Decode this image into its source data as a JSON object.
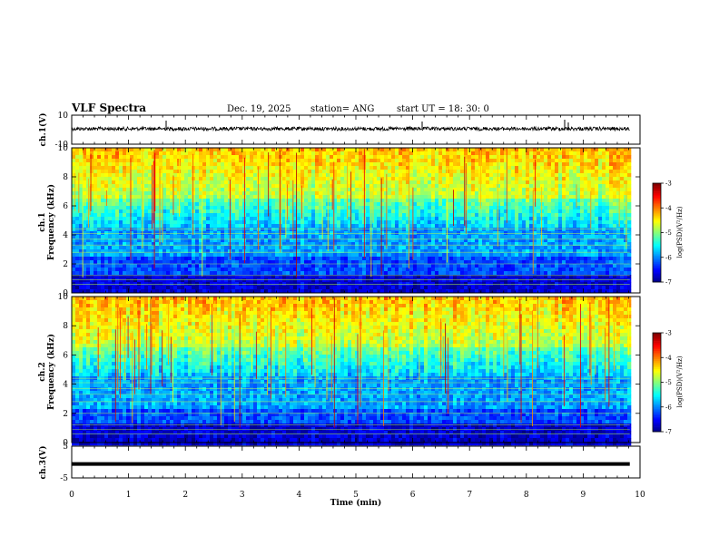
{
  "header": {
    "title": "VLF Spectra",
    "date": "Dec. 19, 2025",
    "station": "station= ANG",
    "start": "start  UT  =   18: 30: 0"
  },
  "chart_data": [
    {
      "id": "ch1_wave",
      "type": "line",
      "ylabel": "ch.1(V)",
      "ylim": [
        -10,
        10
      ],
      "yticks": [
        "10",
        "-10"
      ],
      "description_series": "waveform amplitude"
    },
    {
      "id": "ch1_spec",
      "type": "heatmap",
      "ylabel": [
        "ch.1",
        "Frequency  (kHz)"
      ],
      "ylim": [
        0,
        10
      ],
      "yticks": [
        "0",
        "2",
        "4",
        "6",
        "8",
        "10"
      ],
      "colorbar": {
        "label": "log(PSD)(V²/Hz)",
        "range": [
          -7,
          -3
        ],
        "ticks": [
          "-3",
          "-4",
          "-5",
          "-6",
          "-7"
        ]
      }
    },
    {
      "id": "ch2_spec",
      "type": "heatmap",
      "ylabel": [
        "ch.2",
        "Frequency  (kHz)"
      ],
      "ylim": [
        0,
        10
      ],
      "yticks": [
        "0",
        "2",
        "4",
        "6",
        "8",
        "10"
      ],
      "colorbar": {
        "label": "log(PSD)(V²/Hz)",
        "range": [
          -7,
          -3
        ],
        "ticks": [
          "-3",
          "-4",
          "-5",
          "-6",
          "-7"
        ]
      }
    },
    {
      "id": "ch3_wave",
      "type": "line",
      "ylabel": "ch.3(V)",
      "ylim": [
        -5,
        5
      ],
      "yticks": [
        "5",
        "-5"
      ],
      "description_series": "flat level",
      "level": -0.6
    }
  ],
  "xaxis": {
    "label": "Time  (min)",
    "range": [
      0,
      10
    ],
    "ticks": [
      "0",
      "1",
      "2",
      "3",
      "4",
      "5",
      "6",
      "7",
      "8",
      "9",
      "10"
    ],
    "data_end": 9.82
  }
}
